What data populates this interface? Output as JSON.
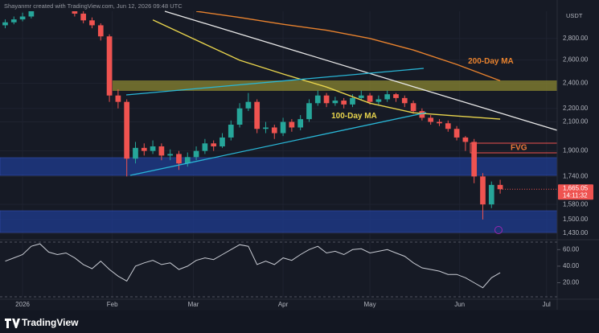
{
  "chart_data": {
    "type": "candlestick",
    "header": "Shayanmr created with TradingView.com, Jun 12, 2026 09:48 UTC",
    "currency": "USDT",
    "log_scale": true,
    "up_color": "#26a69a",
    "down_color": "#ef5350",
    "x": [
      -6,
      -3,
      0,
      3,
      6,
      9,
      12,
      15,
      18,
      21,
      24,
      27,
      30,
      33,
      36,
      39,
      42,
      45,
      48,
      51,
      54,
      57,
      60,
      63,
      66,
      69,
      72,
      75,
      78,
      81,
      84,
      87,
      90,
      93,
      96,
      99,
      102,
      105,
      108,
      111,
      114,
      117,
      120,
      123,
      126,
      129,
      132,
      135,
      138,
      141,
      144,
      147,
      150,
      153,
      156,
      159,
      162,
      165
    ],
    "open": [
      2930,
      2960,
      2990,
      3020,
      3150,
      3250,
      3300,
      3280,
      3200,
      3050,
      2980,
      2930,
      2820,
      2300,
      2250,
      1850,
      1920,
      1900,
      1930,
      1870,
      1880,
      1820,
      1860,
      1900,
      1950,
      1930,
      1990,
      2080,
      2200,
      2250,
      2050,
      2060,
      2020,
      2100,
      2060,
      2120,
      2240,
      2300,
      2240,
      2260,
      2230,
      2280,
      2300,
      2250,
      2270,
      2310,
      2280,
      2240,
      2180,
      2130,
      2100,
      2090,
      2050,
      1990,
      1960,
      1740,
      1580,
      1690
    ],
    "high": [
      2990,
      3020,
      3060,
      3190,
      3300,
      3350,
      3340,
      3300,
      3220,
      3080,
      3010,
      2950,
      2840,
      2350,
      2270,
      1960,
      1950,
      1970,
      1950,
      1910,
      1900,
      1890,
      1930,
      1980,
      1970,
      2020,
      2110,
      2240,
      2320,
      2270,
      2100,
      2080,
      2130,
      2120,
      2150,
      2270,
      2340,
      2320,
      2290,
      2280,
      2310,
      2340,
      2320,
      2300,
      2340,
      2320,
      2300,
      2260,
      2200,
      2150,
      2120,
      2110,
      2070,
      2000,
      1980,
      1760,
      1710,
      1720
    ],
    "low": [
      2900,
      2940,
      2970,
      3000,
      3120,
      3220,
      3240,
      3170,
      3020,
      2950,
      2900,
      2780,
      2250,
      2200,
      1740,
      1820,
      1870,
      1880,
      1840,
      1840,
      1780,
      1800,
      1840,
      1880,
      1900,
      1920,
      1970,
      2060,
      2180,
      2020,
      2020,
      1980,
      2000,
      2030,
      2040,
      2100,
      2220,
      2210,
      2220,
      2200,
      2210,
      2260,
      2230,
      2230,
      2250,
      2250,
      2210,
      2160,
      2110,
      2080,
      2070,
      2030,
      1970,
      1900,
      1700,
      1500,
      1560,
      1640
    ],
    "close": [
      2960,
      2990,
      3020,
      3150,
      3250,
      3300,
      3280,
      3200,
      3050,
      2980,
      2930,
      2820,
      2300,
      2250,
      1850,
      1920,
      1900,
      1930,
      1870,
      1880,
      1820,
      1860,
      1900,
      1950,
      1930,
      1990,
      2080,
      2200,
      2250,
      2050,
      2060,
      2020,
      2100,
      2060,
      2120,
      2240,
      2300,
      2240,
      2260,
      2230,
      2280,
      2300,
      2250,
      2270,
      2310,
      2280,
      2240,
      2180,
      2130,
      2100,
      2090,
      2050,
      1990,
      1960,
      1740,
      1580,
      1690,
      1665.05
    ],
    "last_price": {
      "value": 1665.05,
      "label": "1,665.05"
    },
    "countdown": "14:11:32",
    "xlim": [
      -7.8,
      184.7
    ],
    "xticks": [
      {
        "value": 0,
        "label": "2026"
      },
      {
        "value": 31,
        "label": "Feb"
      },
      {
        "value": 59,
        "label": "Mar"
      },
      {
        "value": 90,
        "label": "Apr"
      },
      {
        "value": 120,
        "label": "May"
      },
      {
        "value": 151,
        "label": "Jun"
      },
      {
        "value": 181,
        "label": "Jul"
      }
    ],
    "ylim": [
      1403,
      3075
    ],
    "yticks": [
      {
        "value": 1430,
        "label": "1,430.00"
      },
      {
        "value": 1500,
        "label": "1,500.00"
      },
      {
        "value": 1580,
        "label": "1,580.00"
      },
      {
        "value": 1740,
        "label": "1,740.00"
      },
      {
        "value": 1900,
        "label": "1,900.00"
      },
      {
        "value": 2100,
        "label": "2,100.00"
      },
      {
        "value": 2200,
        "label": "2,200.00"
      },
      {
        "value": 2400,
        "label": "2,400.00"
      },
      {
        "value": 2600,
        "label": "2,600.00"
      },
      {
        "value": 2800,
        "label": "2,800.00"
      }
    ],
    "overlays": [
      {
        "name": "100-Day MA",
        "color": "#e8d44d",
        "x": [
          45,
          60,
          75,
          90,
          105,
          120,
          135,
          150,
          165
        ],
        "values": [
          2985,
          2784,
          2597,
          2477,
          2368,
          2240,
          2167,
          2143,
          2120
        ]
      },
      {
        "name": "200-Day MA",
        "color": "#e8822e",
        "x": [
          60,
          75,
          90,
          105,
          120,
          135,
          150,
          165
        ],
        "values": [
          3075,
          3010,
          2940,
          2880,
          2800,
          2690,
          2560,
          2420
        ]
      }
    ],
    "fvg_label": "FVG",
    "rsi": {
      "color": "#c9ccd4",
      "values": [
        46,
        50,
        54,
        64,
        67,
        57,
        54,
        56,
        50,
        42,
        37,
        46,
        36,
        28,
        22,
        40,
        44,
        47,
        42,
        44,
        36,
        40,
        47,
        50,
        48,
        54,
        60,
        66,
        64,
        42,
        46,
        42,
        50,
        47,
        54,
        60,
        64,
        56,
        58,
        54,
        60,
        61,
        56,
        58,
        60,
        56,
        52,
        44,
        38,
        36,
        34,
        30,
        30,
        26,
        20,
        14,
        26,
        32
      ],
      "ylim": [
        2,
        72
      ],
      "yticks": [
        {
          "value": 20,
          "label": "20.00"
        },
        {
          "value": 40,
          "label": "40.00"
        },
        {
          "value": 60,
          "label": "60.00"
        }
      ]
    },
    "brand": "TradingView"
  }
}
